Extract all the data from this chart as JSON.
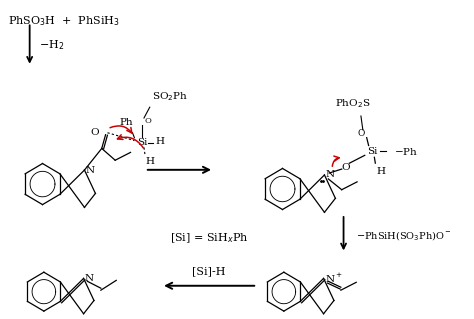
{
  "bg_color": "#ffffff",
  "text_color": "#000000",
  "red_color": "#cc0000",
  "figsize": [
    4.74,
    3.19
  ],
  "dpi": 100,
  "top_left_text1": "PhSO",
  "top_left_text2": "H  +  PhSiH",
  "arrow1_label": "-H$_2$",
  "arrow3_label": "-PhSiH(SO$_3$Ph)O$^-$",
  "arrow4_label": "[Si]-H",
  "center_label": "[Si] = SiH$_x$Ph",
  "struct1_SO2Ph": "SO$_2$Ph",
  "struct2_PhO2S": "PhO$_2$S"
}
